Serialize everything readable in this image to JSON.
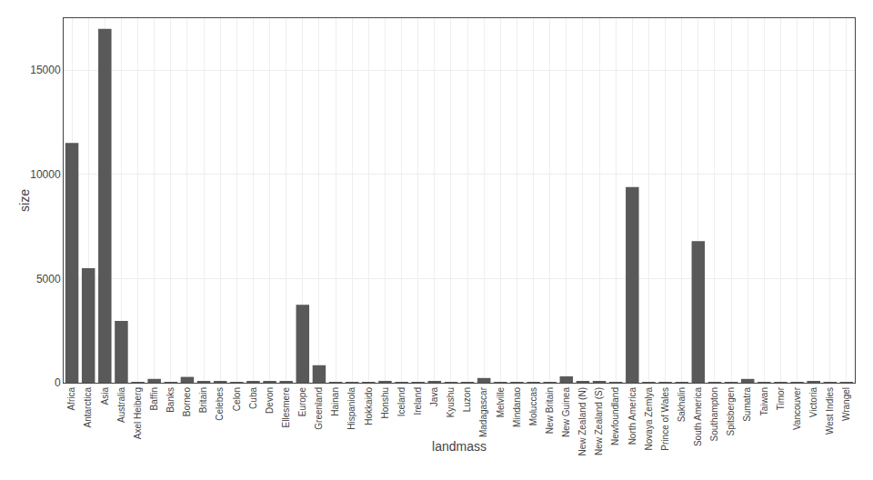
{
  "chart_data": {
    "type": "bar",
    "categories": [
      "Africa",
      "Antarctica",
      "Asia",
      "Australia",
      "Axel Heiberg",
      "Baffin",
      "Banks",
      "Borneo",
      "Britain",
      "Celebes",
      "Celon",
      "Cuba",
      "Devon",
      "Ellesmere",
      "Europe",
      "Greenland",
      "Hainan",
      "Hispaniola",
      "Hokkaido",
      "Honshu",
      "Iceland",
      "Ireland",
      "Java",
      "Kyushu",
      "Luzon",
      "Madagascar",
      "Melville",
      "Mindanao",
      "Moluccas",
      "New Britain",
      "New Guinea",
      "New Zealand (N)",
      "New Zealand (S)",
      "Newfoundland",
      "North America",
      "Novaya Zemlya",
      "Prince of Wales",
      "Sakhalin",
      "South America",
      "Southampton",
      "Spitsbergen",
      "Sumatra",
      "Taiwan",
      "Timor",
      "Vancouver",
      "Victoria",
      "West Indies",
      "Wrangel"
    ],
    "values": [
      11506,
      5500,
      16988,
      2968,
      43,
      184,
      23,
      280,
      84,
      73,
      25,
      44,
      55,
      83,
      3745,
      840,
      13,
      30,
      30,
      89,
      40,
      33,
      49,
      14,
      42,
      227,
      16,
      36,
      29,
      15,
      306,
      44,
      58,
      43,
      9390,
      32,
      12,
      29,
      6795,
      41,
      15,
      183,
      14,
      13,
      21,
      83,
      19,
      8
    ],
    "color": "#595959",
    "xlabel": "landmass",
    "ylabel": "size",
    "ylim": [
      0,
      17500
    ],
    "yticks": [
      0,
      5000,
      10000,
      15000
    ],
    "grid": true
  }
}
